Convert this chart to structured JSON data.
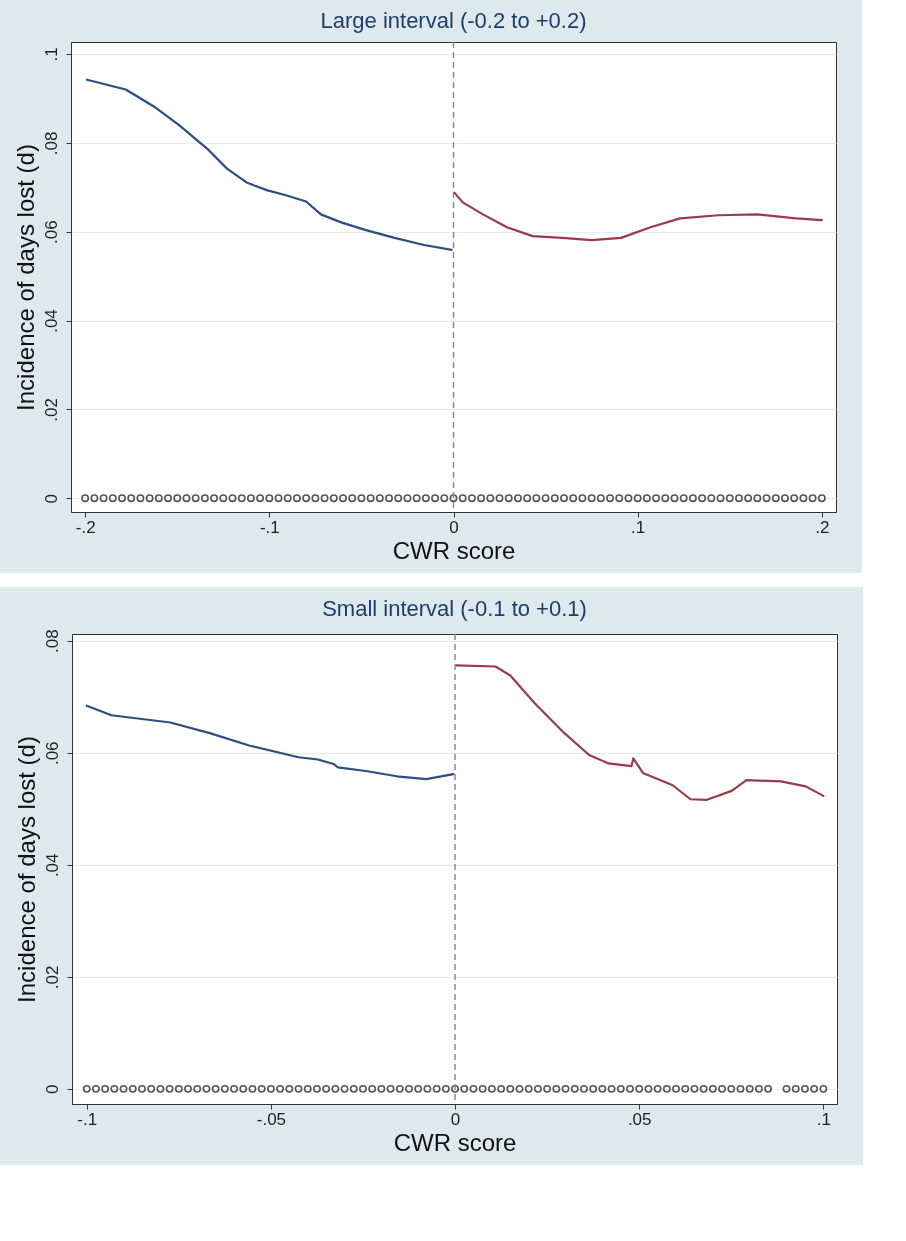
{
  "chart_data": [
    {
      "type": "line",
      "title": "Large interval (-0.2 to +0.2)",
      "xlabel": "CWR score",
      "ylabel": "Incidence of days lost (d)",
      "grid": "y",
      "xlim": [
        -0.2077,
        0.2077
      ],
      "ylim": [
        -0.0031,
        0.1027
      ],
      "xticks": [
        {
          "value": -0.2,
          "label": "-.2"
        },
        {
          "value": -0.1,
          "label": "-.1"
        },
        0,
        {
          "value": 0.1,
          "label": ".1"
        },
        {
          "value": 0.2,
          "label": ".2"
        }
      ],
      "yticks": [
        0,
        {
          "value": 0.02,
          "label": ".02"
        },
        {
          "value": 0.04,
          "label": ".04"
        },
        {
          "value": 0.06,
          "label": ".06"
        },
        {
          "value": 0.08,
          "label": ".08"
        },
        {
          "value": 0.1,
          "label": ".1"
        }
      ],
      "ref_lines": [
        {
          "axis": "x",
          "value": 0,
          "color": "#8c8c8c",
          "line_style": "dashed"
        }
      ],
      "series": [
        {
          "color": "#2b4f7e",
          "x": [
            -0.199,
            -0.178,
            -0.162,
            -0.149,
            -0.133,
            -0.123,
            -0.112,
            -0.101,
            -0.091,
            -0.08,
            -0.072,
            -0.061,
            -0.048,
            -0.032,
            -0.016,
            -0.001
          ],
          "values": [
            0.0942,
            0.092,
            0.088,
            0.084,
            0.0784,
            0.0742,
            0.071,
            0.0693,
            0.0682,
            0.0668,
            0.0639,
            0.0621,
            0.0604,
            0.0586,
            0.057,
            0.0559
          ]
        },
        {
          "color": "#9b3a4a",
          "x": [
            0.0005,
            0.005,
            0.016,
            0.029,
            0.043,
            0.059,
            0.075,
            0.091,
            0.107,
            0.123,
            0.144,
            0.165,
            0.186,
            0.2
          ],
          "values": [
            0.0688,
            0.0666,
            0.0639,
            0.061,
            0.059,
            0.0586,
            0.0581,
            0.0586,
            0.061,
            0.063,
            0.0637,
            0.0639,
            0.063,
            0.0626
          ]
        },
        {
          "type": "scatter",
          "marker": "circle",
          "color": "#555555",
          "x": [
            -0.2,
            -0.195,
            -0.19,
            -0.185,
            -0.18,
            -0.175,
            -0.17,
            -0.165,
            -0.16,
            -0.155,
            -0.15,
            -0.145,
            -0.14,
            -0.135,
            -0.13,
            -0.125,
            -0.12,
            -0.115,
            -0.11,
            -0.105,
            -0.1,
            -0.095,
            -0.09,
            -0.085,
            -0.08,
            -0.075,
            -0.07,
            -0.065,
            -0.06,
            -0.055,
            -0.05,
            -0.045,
            -0.04,
            -0.035,
            -0.03,
            -0.025,
            -0.02,
            -0.015,
            -0.01,
            -0.005,
            0,
            0.005,
            0.01,
            0.015,
            0.02,
            0.025,
            0.03,
            0.035,
            0.04,
            0.045,
            0.05,
            0.055,
            0.06,
            0.065,
            0.07,
            0.075,
            0.08,
            0.085,
            0.09,
            0.095,
            0.1,
            0.105,
            0.11,
            0.115,
            0.12,
            0.125,
            0.13,
            0.135,
            0.14,
            0.145,
            0.15,
            0.155,
            0.16,
            0.165,
            0.17,
            0.175,
            0.18,
            0.185,
            0.19,
            0.195,
            0.2
          ],
          "values": [
            0,
            0,
            0,
            0,
            0,
            0,
            0,
            0,
            0,
            0,
            0,
            0,
            0,
            0,
            0,
            0,
            0,
            0,
            0,
            0,
            0,
            0,
            0,
            0,
            0,
            0,
            0,
            0,
            0,
            0,
            0,
            0,
            0,
            0,
            0,
            0,
            0,
            0,
            0,
            0,
            0,
            0,
            0,
            0,
            0,
            0,
            0,
            0,
            0,
            0,
            0,
            0,
            0,
            0,
            0,
            0,
            0,
            0,
            0,
            0,
            0,
            0,
            0,
            0,
            0,
            0,
            0,
            0,
            0,
            0,
            0,
            0,
            0,
            0,
            0,
            0,
            0,
            0,
            0,
            0,
            0
          ]
        }
      ]
    },
    {
      "type": "line",
      "title": "Small interval (-0.1 to +0.1)",
      "xlabel": "CWR score",
      "ylabel": "Incidence of days lost (d)",
      "grid": "y",
      "xlim": [
        -0.104,
        0.1037
      ],
      "ylim": [
        -0.0027,
        0.0812
      ],
      "xticks": [
        {
          "value": -0.1,
          "label": "-.1"
        },
        {
          "value": -0.05,
          "label": "-.05"
        },
        0,
        {
          "value": 0.05,
          "label": ".05"
        },
        {
          "value": 0.1,
          "label": ".1"
        }
      ],
      "yticks": [
        0,
        {
          "value": 0.02,
          "label": ".02"
        },
        {
          "value": 0.04,
          "label": ".04"
        },
        {
          "value": 0.06,
          "label": ".06"
        },
        {
          "value": 0.08,
          "label": ".08"
        }
      ],
      "ref_lines": [
        {
          "axis": "x",
          "value": 0,
          "color": "#8c8c8c",
          "line_style": "dashed"
        }
      ],
      "series": [
        {
          "color": "#2b4f7e",
          "x": [
            -0.1,
            -0.0933,
            -0.0773,
            -0.0666,
            -0.0559,
            -0.0425,
            -0.0372,
            -0.033,
            -0.0318,
            -0.0238,
            -0.0158,
            -0.0078,
            -0.0005
          ],
          "values": [
            0.0684,
            0.0667,
            0.0654,
            0.0635,
            0.0613,
            0.0592,
            0.0588,
            0.058,
            0.0574,
            0.0567,
            0.0558,
            0.0553,
            0.0562
          ]
        },
        {
          "color": "#9b3a4a",
          "x": [
            0.0003,
            0.011,
            0.015,
            0.0217,
            0.0297,
            0.0364,
            0.0417,
            0.0479,
            0.0484,
            0.051,
            0.0591,
            0.0639,
            0.0684,
            0.0751,
            0.0791,
            0.0885,
            0.0952,
            0.1
          ],
          "values": [
            0.0756,
            0.0754,
            0.0738,
            0.0688,
            0.0635,
            0.0596,
            0.0581,
            0.0576,
            0.059,
            0.0564,
            0.0542,
            0.0517,
            0.0516,
            0.0532,
            0.0551,
            0.0549,
            0.054,
            0.0523
          ]
        },
        {
          "type": "scatter",
          "marker": "circle",
          "color": "#555555",
          "x": [
            -0.1,
            -0.0975,
            -0.095,
            -0.0925,
            -0.09,
            -0.0875,
            -0.085,
            -0.0825,
            -0.08,
            -0.0775,
            -0.075,
            -0.0725,
            -0.07,
            -0.0675,
            -0.065,
            -0.0625,
            -0.06,
            -0.0575,
            -0.055,
            -0.0525,
            -0.05,
            -0.0475,
            -0.045,
            -0.0425,
            -0.04,
            -0.0375,
            -0.035,
            -0.0325,
            -0.03,
            -0.0275,
            -0.025,
            -0.0225,
            -0.02,
            -0.0175,
            -0.015,
            -0.0125,
            -0.01,
            -0.0075,
            -0.005,
            -0.0025,
            0,
            0.0025,
            0.005,
            0.0075,
            0.01,
            0.0125,
            0.015,
            0.0175,
            0.02,
            0.0225,
            0.025,
            0.0275,
            0.03,
            0.0325,
            0.035,
            0.0375,
            0.04,
            0.0425,
            0.045,
            0.0475,
            0.05,
            0.0525,
            0.055,
            0.0575,
            0.06,
            0.0625,
            0.065,
            0.0675,
            0.07,
            0.0725,
            0.075,
            0.0775,
            0.08,
            0.0825,
            0.085,
            0.09,
            0.0925,
            0.095,
            0.0975,
            0.1
          ],
          "values": [
            0,
            0,
            0,
            0,
            0,
            0,
            0,
            0,
            0,
            0,
            0,
            0,
            0,
            0,
            0,
            0,
            0,
            0,
            0,
            0,
            0,
            0,
            0,
            0,
            0,
            0,
            0,
            0,
            0,
            0,
            0,
            0,
            0,
            0,
            0,
            0,
            0,
            0,
            0,
            0,
            0,
            0,
            0,
            0,
            0,
            0,
            0,
            0,
            0,
            0,
            0,
            0,
            0,
            0,
            0,
            0,
            0,
            0,
            0,
            0,
            0,
            0,
            0,
            0,
            0,
            0,
            0,
            0,
            0,
            0,
            0,
            0,
            0,
            0,
            0,
            0,
            0,
            0,
            0,
            0
          ]
        }
      ]
    }
  ]
}
